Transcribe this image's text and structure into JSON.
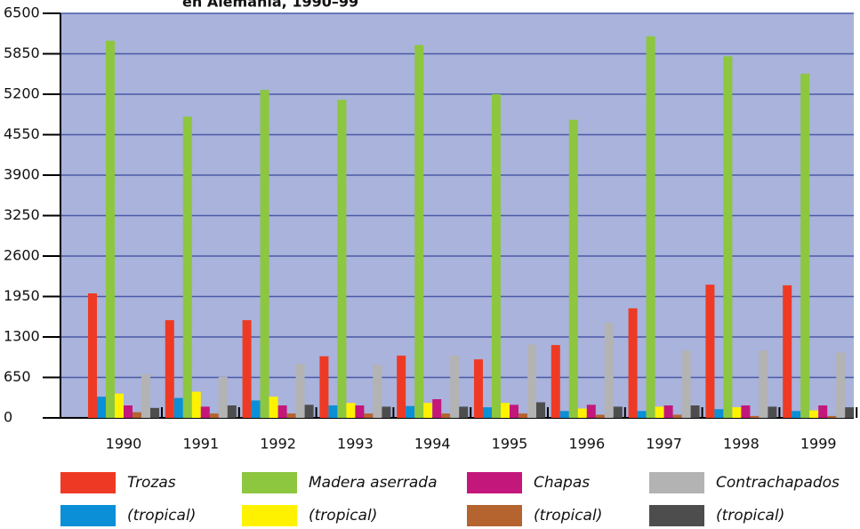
{
  "chart_data": {
    "type": "bar",
    "title": "en Alemania, 1990–99",
    "categories": [
      "1990",
      "1991",
      "1992",
      "1993",
      "1994",
      "1995",
      "1996",
      "1997",
      "1998",
      "1999"
    ],
    "series": [
      {
        "name": "Trozas",
        "color": "#ee3a24",
        "values": [
          2000,
          1570,
          1570,
          990,
          1000,
          940,
          1170,
          1760,
          2140,
          2130
        ]
      },
      {
        "name": "(tropical)",
        "color": "#0b8fd6",
        "values": [
          340,
          320,
          280,
          200,
          190,
          170,
          110,
          110,
          140,
          110
        ]
      },
      {
        "name": "Madera aserrada",
        "color": "#8dc63f",
        "values": [
          6060,
          4840,
          5270,
          5110,
          5990,
          5200,
          4790,
          6130,
          5810,
          5530
        ]
      },
      {
        "name": "(tropical)",
        "color": "#fff200",
        "values": [
          390,
          420,
          340,
          240,
          240,
          240,
          150,
          180,
          170,
          120
        ]
      },
      {
        "name": "Chapas",
        "color": "#c4177c",
        "values": [
          200,
          180,
          200,
          200,
          300,
          210,
          210,
          200,
          200,
          200
        ]
      },
      {
        "name": "(tropical)",
        "color": "#b5632f",
        "values": [
          90,
          70,
          70,
          70,
          70,
          70,
          50,
          50,
          30,
          30
        ]
      },
      {
        "name": "Contrachapados",
        "color": "#b3b3b3",
        "values": [
          700,
          660,
          870,
          850,
          1000,
          1180,
          1530,
          1080,
          1080,
          1050
        ]
      },
      {
        "name": "(tropical)",
        "color": "#4d4d4d",
        "values": [
          160,
          200,
          210,
          180,
          180,
          250,
          180,
          200,
          180,
          170
        ]
      }
    ],
    "ylim": [
      0,
      6500
    ],
    "yticks": [
      0,
      650,
      1300,
      1950,
      2600,
      3250,
      3900,
      4550,
      5200,
      5850,
      6500
    ],
    "grid": true
  }
}
